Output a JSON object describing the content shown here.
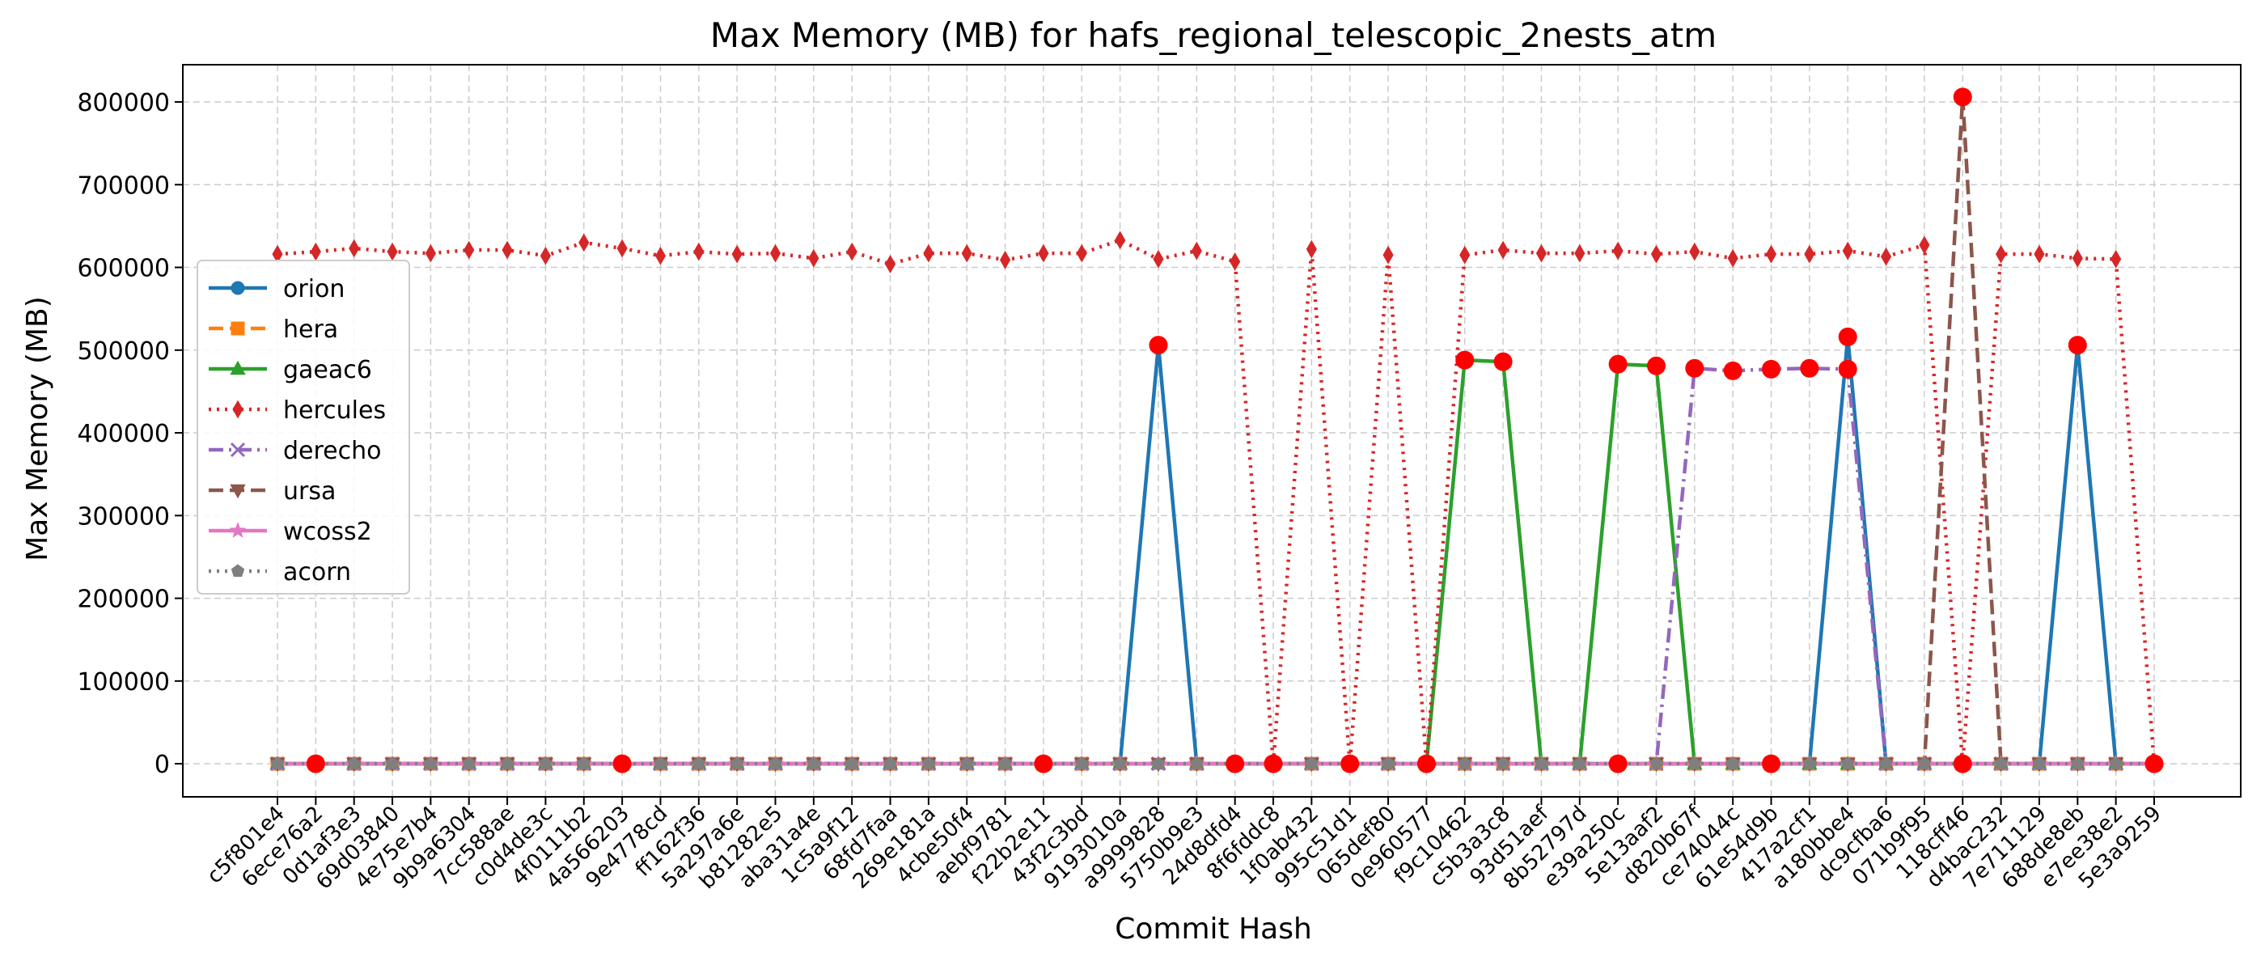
{
  "chart_data": {
    "type": "line",
    "title": "Max Memory (MB) for hafs_regional_telescopic_2nests_atm",
    "xlabel": "Commit Hash",
    "ylabel": "Max Memory (MB)",
    "ylim": [
      -40000,
      845000
    ],
    "yticks": [
      0,
      100000,
      200000,
      300000,
      400000,
      500000,
      600000,
      700000,
      800000
    ],
    "ytick_labels": [
      "0",
      "100000",
      "200000",
      "300000",
      "400000",
      "500000",
      "600000",
      "700000",
      "800000"
    ],
    "grid": true,
    "legend_position": "center-left",
    "categories": [
      "c5f801e4",
      "6ece76a2",
      "0d1af3e3",
      "69d03840",
      "4e75e7b4",
      "9b9a6304",
      "7cc588ae",
      "c0d4de3c",
      "4f0111b2",
      "4a566203",
      "9e4778cd",
      "ff162f36",
      "5a297a6e",
      "b81282e5",
      "aba31a4e",
      "1c5a9f12",
      "68fd7faa",
      "269e181a",
      "4cbe50f4",
      "aebf9781",
      "f22b2e11",
      "43f2c3bd",
      "9193010a",
      "a9999828",
      "5750b9e3",
      "24d8dfd4",
      "8f6fddc8",
      "1f0ab432",
      "995c51d1",
      "065def80",
      "0e960577",
      "f9c10462",
      "c5b3a3c8",
      "93d51aef",
      "8b52797d",
      "e39a250c",
      "5e13aaf2",
      "d820b67f",
      "ce74044c",
      "61e54d9b",
      "417a2cf1",
      "a180bbe4",
      "dc9cfba6",
      "071b9f95",
      "118cff46",
      "d4bac232",
      "7e711129",
      "688de8eb",
      "e7ee38e2",
      "5e3a9259"
    ],
    "series": [
      {
        "name": "orion",
        "color": "#1f77b4",
        "marker": "circle",
        "dash": "solid",
        "values": [
          0,
          0,
          0,
          0,
          0,
          0,
          0,
          0,
          0,
          0,
          0,
          0,
          0,
          0,
          0,
          0,
          null,
          0,
          0,
          0,
          0,
          0,
          0,
          506000,
          0,
          0,
          0,
          0,
          0,
          0,
          0,
          0,
          0,
          0,
          0,
          0,
          0,
          0,
          0,
          0,
          0,
          516000,
          0,
          0,
          0,
          0,
          0,
          506000,
          0,
          0
        ]
      },
      {
        "name": "hera",
        "color": "#ff7f0e",
        "marker": "square",
        "dash": "dashed",
        "values": [
          0,
          0,
          0,
          0,
          0,
          0,
          0,
          0,
          0,
          0,
          0,
          0,
          0,
          0,
          0,
          0,
          0,
          0,
          0,
          0,
          0,
          0,
          0,
          null,
          0,
          0,
          0,
          0,
          0,
          0,
          0,
          0,
          0,
          0,
          0,
          0,
          0,
          0,
          0,
          0,
          0,
          0,
          0,
          0,
          0,
          0,
          0,
          0,
          0,
          0
        ]
      },
      {
        "name": "gaeac6",
        "color": "#2ca02c",
        "marker": "triangle-up",
        "dash": "solid",
        "values": [
          0,
          0,
          0,
          0,
          0,
          0,
          0,
          0,
          0,
          0,
          0,
          0,
          0,
          0,
          0,
          0,
          0,
          0,
          0,
          0,
          0,
          0,
          0,
          0,
          0,
          0,
          0,
          0,
          0,
          0,
          0,
          488000,
          486000,
          0,
          0,
          483000,
          481000,
          0,
          0,
          0,
          0,
          0,
          0,
          0,
          0,
          0,
          0,
          0,
          0,
          0
        ]
      },
      {
        "name": "hercules",
        "color": "#d62728",
        "marker": "diamond",
        "dash": "dotted",
        "values": [
          616000,
          619000,
          623000,
          619000,
          617000,
          621000,
          621000,
          614000,
          630000,
          623000,
          614000,
          619000,
          616000,
          617000,
          611000,
          619000,
          604000,
          617000,
          617000,
          609000,
          617000,
          617000,
          633000,
          610000,
          620000,
          607000,
          0,
          622000,
          0,
          615000,
          0,
          615000,
          621000,
          617000,
          617000,
          620000,
          616000,
          619000,
          611000,
          616000,
          616000,
          620000,
          613000,
          627000,
          0,
          616000,
          616000,
          611000,
          610000,
          0
        ]
      },
      {
        "name": "derecho",
        "color": "#9467bd",
        "marker": "x",
        "dash": "dashdot",
        "values": [
          0,
          0,
          0,
          0,
          0,
          0,
          0,
          0,
          0,
          0,
          0,
          0,
          0,
          0,
          0,
          0,
          0,
          0,
          0,
          0,
          0,
          0,
          0,
          0,
          0,
          0,
          0,
          0,
          0,
          0,
          0,
          0,
          0,
          0,
          0,
          0,
          0,
          478000,
          475000,
          477000,
          478000,
          477000,
          0,
          0,
          0,
          0,
          0,
          0,
          0,
          0
        ]
      },
      {
        "name": "ursa",
        "color": "#8c564b",
        "marker": "triangle-down",
        "dash": "dashed",
        "values": [
          0,
          0,
          0,
          0,
          0,
          0,
          0,
          0,
          0,
          0,
          0,
          0,
          0,
          0,
          0,
          0,
          0,
          0,
          0,
          0,
          0,
          0,
          0,
          0,
          0,
          0,
          0,
          0,
          0,
          0,
          0,
          0,
          0,
          0,
          0,
          0,
          0,
          0,
          0,
          0,
          0,
          0,
          0,
          0,
          806000,
          0,
          0,
          0,
          0,
          0
        ]
      },
      {
        "name": "wcoss2",
        "color": "#e377c2",
        "marker": "star",
        "dash": "solid",
        "values": [
          0,
          0,
          0,
          0,
          0,
          0,
          0,
          0,
          0,
          0,
          0,
          0,
          0,
          0,
          0,
          0,
          0,
          0,
          0,
          0,
          0,
          0,
          0,
          0,
          0,
          0,
          0,
          0,
          0,
          0,
          0,
          0,
          0,
          0,
          0,
          0,
          0,
          0,
          0,
          0,
          0,
          0,
          0,
          0,
          0,
          0,
          0,
          0,
          0,
          0
        ]
      },
      {
        "name": "acorn",
        "color": "#7f7f7f",
        "marker": "pentagon",
        "dash": "dotted",
        "values": [
          0,
          0,
          0,
          0,
          0,
          0,
          0,
          0,
          0,
          0,
          0,
          0,
          0,
          0,
          0,
          0,
          0,
          0,
          0,
          0,
          0,
          0,
          0,
          0,
          0,
          0,
          0,
          0,
          0,
          0,
          0,
          0,
          0,
          0,
          0,
          0,
          0,
          0,
          0,
          0,
          0,
          0,
          0,
          0,
          0,
          0,
          0,
          0,
          0,
          0
        ]
      }
    ],
    "anomalies": {
      "color": "#ff0000",
      "points": [
        {
          "x": "6ece76a2",
          "y": 0
        },
        {
          "x": "4a566203",
          "y": 0
        },
        {
          "x": "f22b2e11",
          "y": 0
        },
        {
          "x": "a9999828",
          "y": 506000
        },
        {
          "x": "24d8dfd4",
          "y": 0
        },
        {
          "x": "8f6fddc8",
          "y": 0
        },
        {
          "x": "995c51d1",
          "y": 0
        },
        {
          "x": "0e960577",
          "y": 0
        },
        {
          "x": "f9c10462",
          "y": 488000
        },
        {
          "x": "c5b3a3c8",
          "y": 486000
        },
        {
          "x": "e39a250c",
          "y": 483000
        },
        {
          "x": "e39a250c",
          "y": 0
        },
        {
          "x": "5e13aaf2",
          "y": 481000
        },
        {
          "x": "d820b67f",
          "y": 478000
        },
        {
          "x": "ce74044c",
          "y": 475000
        },
        {
          "x": "61e54d9b",
          "y": 477000
        },
        {
          "x": "61e54d9b",
          "y": 0
        },
        {
          "x": "417a2cf1",
          "y": 478000
        },
        {
          "x": "a180bbe4",
          "y": 516000
        },
        {
          "x": "a180bbe4",
          "y": 477000
        },
        {
          "x": "118cff46",
          "y": 806000
        },
        {
          "x": "118cff46",
          "y": 0
        },
        {
          "x": "688de8eb",
          "y": 506000
        },
        {
          "x": "5e3a9259",
          "y": 0
        }
      ]
    }
  }
}
